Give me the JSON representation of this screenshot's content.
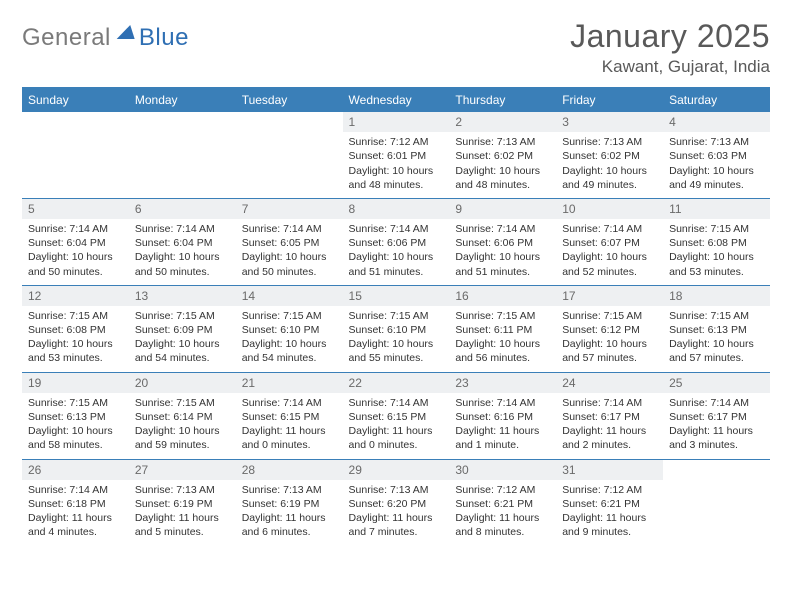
{
  "logo": {
    "general": "General",
    "blue": "Blue"
  },
  "header": {
    "month_title": "January 2025",
    "location": "Kawant, Gujarat, India"
  },
  "weekdays": [
    "Sunday",
    "Monday",
    "Tuesday",
    "Wednesday",
    "Thursday",
    "Friday",
    "Saturday"
  ],
  "colors": {
    "accent": "#3a7fb8",
    "daynum_bg": "#eef0f2",
    "text": "#333333",
    "subtle": "#6a6a6a"
  },
  "grid": [
    [
      null,
      null,
      null,
      {
        "n": "1",
        "sr": "7:12 AM",
        "ss": "6:01 PM",
        "dl": "10 hours and 48 minutes."
      },
      {
        "n": "2",
        "sr": "7:13 AM",
        "ss": "6:02 PM",
        "dl": "10 hours and 48 minutes."
      },
      {
        "n": "3",
        "sr": "7:13 AM",
        "ss": "6:02 PM",
        "dl": "10 hours and 49 minutes."
      },
      {
        "n": "4",
        "sr": "7:13 AM",
        "ss": "6:03 PM",
        "dl": "10 hours and 49 minutes."
      }
    ],
    [
      {
        "n": "5",
        "sr": "7:14 AM",
        "ss": "6:04 PM",
        "dl": "10 hours and 50 minutes."
      },
      {
        "n": "6",
        "sr": "7:14 AM",
        "ss": "6:04 PM",
        "dl": "10 hours and 50 minutes."
      },
      {
        "n": "7",
        "sr": "7:14 AM",
        "ss": "6:05 PM",
        "dl": "10 hours and 50 minutes."
      },
      {
        "n": "8",
        "sr": "7:14 AM",
        "ss": "6:06 PM",
        "dl": "10 hours and 51 minutes."
      },
      {
        "n": "9",
        "sr": "7:14 AM",
        "ss": "6:06 PM",
        "dl": "10 hours and 51 minutes."
      },
      {
        "n": "10",
        "sr": "7:14 AM",
        "ss": "6:07 PM",
        "dl": "10 hours and 52 minutes."
      },
      {
        "n": "11",
        "sr": "7:15 AM",
        "ss": "6:08 PM",
        "dl": "10 hours and 53 minutes."
      }
    ],
    [
      {
        "n": "12",
        "sr": "7:15 AM",
        "ss": "6:08 PM",
        "dl": "10 hours and 53 minutes."
      },
      {
        "n": "13",
        "sr": "7:15 AM",
        "ss": "6:09 PM",
        "dl": "10 hours and 54 minutes."
      },
      {
        "n": "14",
        "sr": "7:15 AM",
        "ss": "6:10 PM",
        "dl": "10 hours and 54 minutes."
      },
      {
        "n": "15",
        "sr": "7:15 AM",
        "ss": "6:10 PM",
        "dl": "10 hours and 55 minutes."
      },
      {
        "n": "16",
        "sr": "7:15 AM",
        "ss": "6:11 PM",
        "dl": "10 hours and 56 minutes."
      },
      {
        "n": "17",
        "sr": "7:15 AM",
        "ss": "6:12 PM",
        "dl": "10 hours and 57 minutes."
      },
      {
        "n": "18",
        "sr": "7:15 AM",
        "ss": "6:13 PM",
        "dl": "10 hours and 57 minutes."
      }
    ],
    [
      {
        "n": "19",
        "sr": "7:15 AM",
        "ss": "6:13 PM",
        "dl": "10 hours and 58 minutes."
      },
      {
        "n": "20",
        "sr": "7:15 AM",
        "ss": "6:14 PM",
        "dl": "10 hours and 59 minutes."
      },
      {
        "n": "21",
        "sr": "7:14 AM",
        "ss": "6:15 PM",
        "dl": "11 hours and 0 minutes."
      },
      {
        "n": "22",
        "sr": "7:14 AM",
        "ss": "6:15 PM",
        "dl": "11 hours and 0 minutes."
      },
      {
        "n": "23",
        "sr": "7:14 AM",
        "ss": "6:16 PM",
        "dl": "11 hours and 1 minute."
      },
      {
        "n": "24",
        "sr": "7:14 AM",
        "ss": "6:17 PM",
        "dl": "11 hours and 2 minutes."
      },
      {
        "n": "25",
        "sr": "7:14 AM",
        "ss": "6:17 PM",
        "dl": "11 hours and 3 minutes."
      }
    ],
    [
      {
        "n": "26",
        "sr": "7:14 AM",
        "ss": "6:18 PM",
        "dl": "11 hours and 4 minutes."
      },
      {
        "n": "27",
        "sr": "7:13 AM",
        "ss": "6:19 PM",
        "dl": "11 hours and 5 minutes."
      },
      {
        "n": "28",
        "sr": "7:13 AM",
        "ss": "6:19 PM",
        "dl": "11 hours and 6 minutes."
      },
      {
        "n": "29",
        "sr": "7:13 AM",
        "ss": "6:20 PM",
        "dl": "11 hours and 7 minutes."
      },
      {
        "n": "30",
        "sr": "7:12 AM",
        "ss": "6:21 PM",
        "dl": "11 hours and 8 minutes."
      },
      {
        "n": "31",
        "sr": "7:12 AM",
        "ss": "6:21 PM",
        "dl": "11 hours and 9 minutes."
      },
      null
    ]
  ],
  "labels": {
    "sunrise": "Sunrise: ",
    "sunset": "Sunset: ",
    "daylight": "Daylight: "
  }
}
